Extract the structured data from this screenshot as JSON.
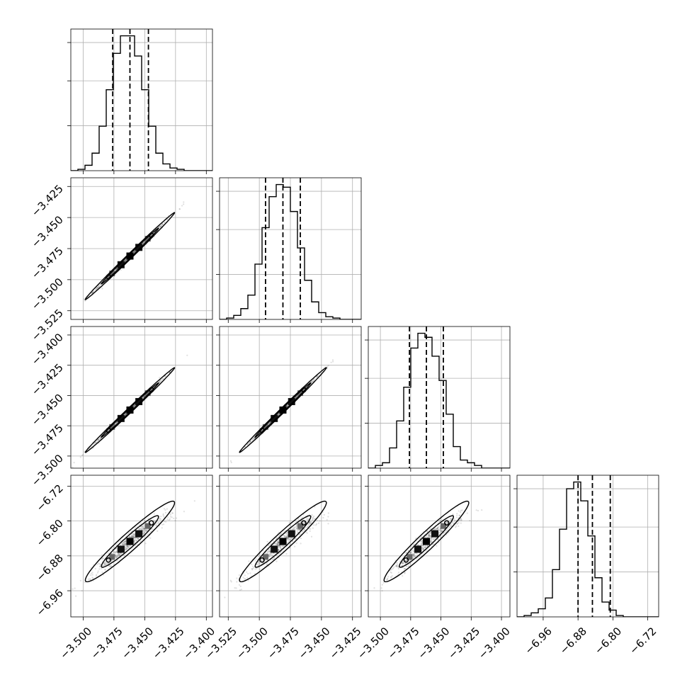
{
  "chart_data": {
    "type": "corner",
    "title": "",
    "grid": true,
    "dims": 4,
    "axes_ranges": [
      [
        -3.51,
        -3.395
      ],
      [
        -3.532,
        -3.418
      ],
      [
        -3.51,
        -3.393
      ],
      [
        -7.02,
        -6.695
      ]
    ],
    "axis_ticks": [
      [
        "−3.500",
        "−3.475",
        "−3.450",
        "−3.425",
        "−3.400"
      ],
      [
        "−3.525",
        "−3.500",
        "−3.475",
        "−3.450",
        "−3.425"
      ],
      [
        "−3.500",
        "−3.475",
        "−3.450",
        "−3.425",
        "−3.400"
      ],
      [
        "−6.96",
        "−6.88",
        "−6.80",
        "−6.72"
      ]
    ],
    "axis_tick_values": [
      [
        -3.5,
        -3.475,
        -3.45,
        -3.425,
        -3.4
      ],
      [
        -3.525,
        -3.5,
        -3.475,
        -3.45,
        -3.425
      ],
      [
        -3.5,
        -3.475,
        -3.45,
        -3.425,
        -3.4
      ],
      [
        -6.96,
        -6.88,
        -6.8,
        -6.72
      ]
    ],
    "quantiles": [
      [
        -3.476,
        -3.462,
        -3.447
      ],
      [
        -3.495,
        -3.481,
        -3.467
      ],
      [
        -3.476,
        -3.462,
        -3.448
      ],
      [
        -6.88,
        -6.847,
        -6.806
      ]
    ],
    "histograms": [
      [
        0.0,
        0.01,
        0.04,
        0.13,
        0.33,
        0.6,
        0.87,
        1.0,
        1.0,
        0.85,
        0.6,
        0.33,
        0.13,
        0.05,
        0.02,
        0.01,
        0.0,
        0.0,
        0.0,
        0.0
      ],
      [
        0.0,
        0.01,
        0.03,
        0.08,
        0.18,
        0.41,
        0.68,
        0.91,
        1.0,
        0.98,
        0.8,
        0.53,
        0.29,
        0.13,
        0.05,
        0.02,
        0.01,
        0.0,
        0.0,
        0.0
      ],
      [
        0.0,
        0.02,
        0.04,
        0.15,
        0.35,
        0.6,
        0.89,
        1.0,
        0.97,
        0.83,
        0.65,
        0.4,
        0.16,
        0.06,
        0.04,
        0.02,
        0.0,
        0.0,
        0.0,
        0.0
      ],
      [
        0.0,
        0.01,
        0.03,
        0.06,
        0.14,
        0.35,
        0.65,
        0.95,
        1.0,
        0.86,
        0.6,
        0.29,
        0.11,
        0.05,
        0.01,
        0.0,
        0.0,
        0.0,
        0.0,
        0.0
      ]
    ],
    "marginal_ylim": [
      0,
      1.05
    ],
    "marginal_grid_fractions": [
      0.333,
      0.666,
      0.95
    ],
    "scatter_color": "#555555",
    "line_color": "#000000",
    "grid_color": "#b0b0b0"
  }
}
